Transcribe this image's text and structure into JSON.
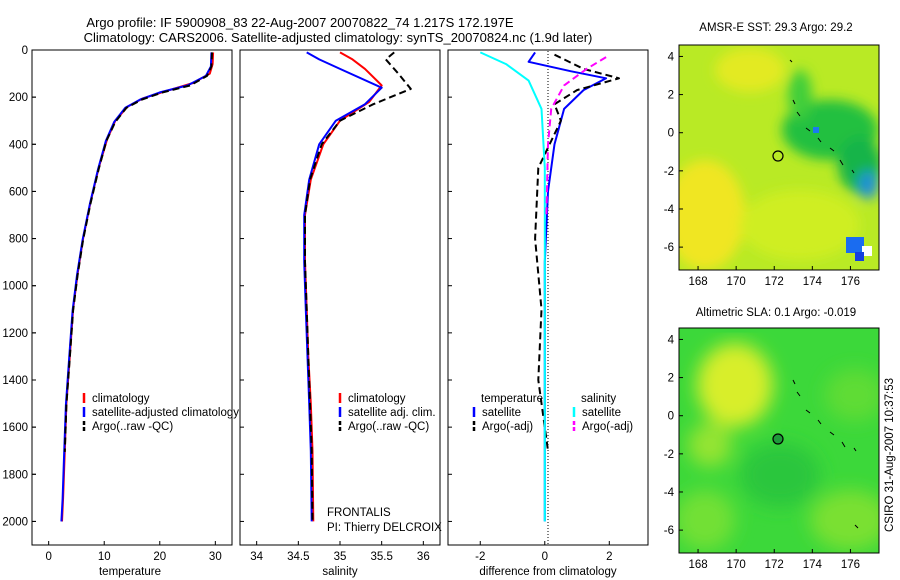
{
  "header": {
    "line1": "Argo profile: IF 5900908_83 22-Aug-2007 20070822_74 1.217S 172.197E",
    "line2": "Climatology: CARS2006. Satellite-adjusted climatology: synTS_20070824.nc (1.9d later)"
  },
  "depth_ticks": [
    "0",
    "200",
    "400",
    "600",
    "800",
    "1000",
    "1200",
    "1400",
    "1600",
    "1800",
    "2000"
  ],
  "chart_data": [
    {
      "type": "line",
      "id": "temperature",
      "xlabel": "temperature",
      "xticks": [
        "0",
        "10",
        "20",
        "30"
      ],
      "xlim": [
        -3,
        33
      ],
      "ylim": [
        2100,
        0
      ],
      "legend": [
        "climatology",
        "satellite-adjusted climatology",
        "Argo(..raw -QC)"
      ],
      "series": [
        {
          "name": "climatology",
          "color": "#ff0000",
          "points": [
            [
              29.6,
              10
            ],
            [
              29.5,
              60
            ],
            [
              29.0,
              100
            ],
            [
              26,
              140
            ],
            [
              21,
              175
            ],
            [
              17,
              205
            ],
            [
              14.2,
              240
            ],
            [
              12,
              300
            ],
            [
              10.5,
              380
            ],
            [
              9,
              500
            ],
            [
              7.5,
              650
            ],
            [
              6.2,
              800
            ],
            [
              5.2,
              950
            ],
            [
              4.4,
              1100
            ],
            [
              3.8,
              1300
            ],
            [
              3.2,
              1500
            ],
            [
              2.9,
              1700
            ],
            [
              2.6,
              1900
            ],
            [
              2.4,
              2000
            ]
          ]
        },
        {
          "name": "satellite-adjusted climatology",
          "color": "#0000ff",
          "points": [
            [
              29.3,
              10
            ],
            [
              29.2,
              70
            ],
            [
              28.3,
              110
            ],
            [
              25,
              150
            ],
            [
              20,
              180
            ],
            [
              16.5,
              210
            ],
            [
              13.8,
              245
            ],
            [
              11.8,
              305
            ],
            [
              10.3,
              385
            ],
            [
              8.9,
              505
            ],
            [
              7.4,
              655
            ],
            [
              6.1,
              805
            ],
            [
              5.1,
              955
            ],
            [
              4.3,
              1105
            ],
            [
              3.7,
              1305
            ],
            [
              3.1,
              1505
            ],
            [
              2.8,
              1705
            ],
            [
              2.5,
              1905
            ],
            [
              2.3,
              2000
            ]
          ]
        },
        {
          "name": "Argo(..raw -QC)",
          "color": "#000000",
          "dashed": true,
          "points": [
            [
              29.4,
              10
            ],
            [
              29.3,
              70
            ],
            [
              28.5,
              110
            ],
            [
              25.5,
              150
            ],
            [
              20.5,
              180
            ],
            [
              16.8,
              210
            ],
            [
              14,
              245
            ],
            [
              12,
              305
            ],
            [
              10.4,
              385
            ],
            [
              9,
              505
            ],
            [
              7.5,
              655
            ],
            [
              6.2,
              805
            ],
            [
              5.2,
              955
            ],
            [
              4.4,
              1105
            ],
            [
              3.8,
              1305
            ],
            [
              3.2,
              1505
            ],
            [
              2.9,
              1705
            ]
          ]
        }
      ]
    },
    {
      "type": "line",
      "id": "salinity",
      "xlabel": "salinity",
      "xticks": [
        "34",
        "34.5",
        "35",
        "35.5",
        "36"
      ],
      "tick_values": [
        34,
        34.5,
        35,
        35.5,
        36
      ],
      "xlim": [
        33.8,
        36.2
      ],
      "ylim": [
        2100,
        0
      ],
      "legend": [
        "climatology",
        "satellite adj. clim.",
        "Argo(..raw -QC)"
      ],
      "note_lines": [
        "FRONTALIS",
        "PI: Thierry DELCROIX"
      ],
      "series": [
        {
          "name": "climatology",
          "color": "#ff0000",
          "points": [
            [
              35.0,
              10
            ],
            [
              35.15,
              40
            ],
            [
              35.3,
              80
            ],
            [
              35.5,
              150
            ],
            [
              35.35,
              220
            ],
            [
              35.0,
              300
            ],
            [
              34.8,
              400
            ],
            [
              34.65,
              550
            ],
            [
              34.58,
              700
            ],
            [
              34.58,
              900
            ],
            [
              34.6,
              1100
            ],
            [
              34.62,
              1300
            ],
            [
              34.65,
              1500
            ],
            [
              34.67,
              1700
            ],
            [
              34.68,
              2000
            ]
          ]
        },
        {
          "name": "satellite adj. clim.",
          "color": "#0000ff",
          "points": [
            [
              34.6,
              10
            ],
            [
              34.75,
              40
            ],
            [
              35.0,
              80
            ],
            [
              35.5,
              160
            ],
            [
              35.3,
              230
            ],
            [
              34.95,
              300
            ],
            [
              34.75,
              400
            ],
            [
              34.63,
              550
            ],
            [
              34.57,
              700
            ],
            [
              34.57,
              900
            ],
            [
              34.59,
              1100
            ],
            [
              34.61,
              1300
            ],
            [
              34.63,
              1500
            ],
            [
              34.65,
              1700
            ],
            [
              34.66,
              2000
            ]
          ]
        },
        {
          "name": "Argo(..raw -QC)",
          "color": "#000000",
          "dashed": true,
          "points": [
            [
              35.65,
              10
            ],
            [
              35.55,
              40
            ],
            [
              35.7,
              100
            ],
            [
              35.85,
              165
            ],
            [
              35.4,
              230
            ],
            [
              35.0,
              300
            ],
            [
              34.78,
              400
            ],
            [
              34.64,
              550
            ],
            [
              34.58,
              700
            ],
            [
              34.58,
              900
            ],
            [
              34.6,
              1100
            ],
            [
              34.62,
              1300
            ],
            [
              34.64,
              1500
            ],
            [
              34.66,
              1700
            ],
            [
              34.67,
              2000
            ]
          ]
        }
      ]
    },
    {
      "type": "line",
      "id": "difference",
      "xlabel": "difference from climatology",
      "xticks": [
        "-2",
        "0",
        "2"
      ],
      "tick_values": [
        -2,
        0,
        2
      ],
      "xlim": [
        -3,
        3.2
      ],
      "ylim": [
        2100,
        0
      ],
      "legend_headers": [
        "temperature",
        "salinity"
      ],
      "legend_left": [
        "satellite",
        "Argo(-adj)"
      ],
      "legend_right": [
        "satellite",
        "Argo(-adj)"
      ],
      "series": [
        {
          "name": "temperature satellite",
          "color": "#0000ff",
          "points": [
            [
              -0.3,
              10
            ],
            [
              -0.5,
              50
            ],
            [
              0.8,
              90
            ],
            [
              1.9,
              120
            ],
            [
              1.2,
              170
            ],
            [
              0.6,
              250
            ],
            [
              0.3,
              400
            ],
            [
              0.1,
              600
            ],
            [
              0.0,
              900
            ],
            [
              0.0,
              1300
            ],
            [
              0.0,
              2000
            ]
          ]
        },
        {
          "name": "temperature Argo(-adj)",
          "color": "#000000",
          "dashed": true,
          "points": [
            [
              0.3,
              20
            ],
            [
              1.2,
              80
            ],
            [
              2.3,
              120
            ],
            [
              1.0,
              170
            ],
            [
              0.3,
              230
            ],
            [
              0.5,
              300
            ],
            [
              -0.2,
              500
            ],
            [
              -0.3,
              800
            ],
            [
              -0.1,
              1100
            ],
            [
              -0.2,
              1400
            ],
            [
              0.1,
              1700
            ]
          ]
        },
        {
          "name": "salinity satellite",
          "color": "#00ffff",
          "points": [
            [
              -2.0,
              10
            ],
            [
              -1.2,
              60
            ],
            [
              -0.5,
              130
            ],
            [
              -0.1,
              250
            ],
            [
              0.0,
              500
            ],
            [
              0.0,
              1000
            ],
            [
              0.0,
              2000
            ]
          ]
        },
        {
          "name": "salinity Argo(-adj)",
          "color": "#ff00ff",
          "dashed": true,
          "points": [
            [
              1.9,
              30
            ],
            [
              1.3,
              80
            ],
            [
              0.6,
              150
            ],
            [
              0.2,
              250
            ],
            [
              0.1,
              400
            ],
            [
              0.05,
              700
            ]
          ]
        }
      ]
    },
    {
      "type": "heatmap",
      "id": "sst-map",
      "title": "AMSR-E SST: 29.3 Argo: 29.2",
      "xticks": [
        "168",
        "170",
        "172",
        "174",
        "176"
      ],
      "yticks": [
        "4",
        "2",
        "0",
        "-2",
        "-4",
        "-6"
      ],
      "xlim": [
        167,
        177.5
      ],
      "ylim": [
        -7.2,
        4.6
      ],
      "argo_position": [
        172.2,
        -1.22
      ]
    },
    {
      "type": "heatmap",
      "id": "sla-map",
      "title": "Altimetric SLA: 0.1 Argo: -0.019",
      "xticks": [
        "168",
        "170",
        "172",
        "174",
        "176"
      ],
      "yticks": [
        "4",
        "2",
        "0",
        "-2",
        "-4",
        "-6"
      ],
      "xlim": [
        167,
        177.5
      ],
      "ylim": [
        -7.2,
        4.6
      ],
      "argo_position": [
        172.2,
        -1.22
      ]
    }
  ],
  "side_label": "CSIRO 31-Aug-2007 10:37:53"
}
